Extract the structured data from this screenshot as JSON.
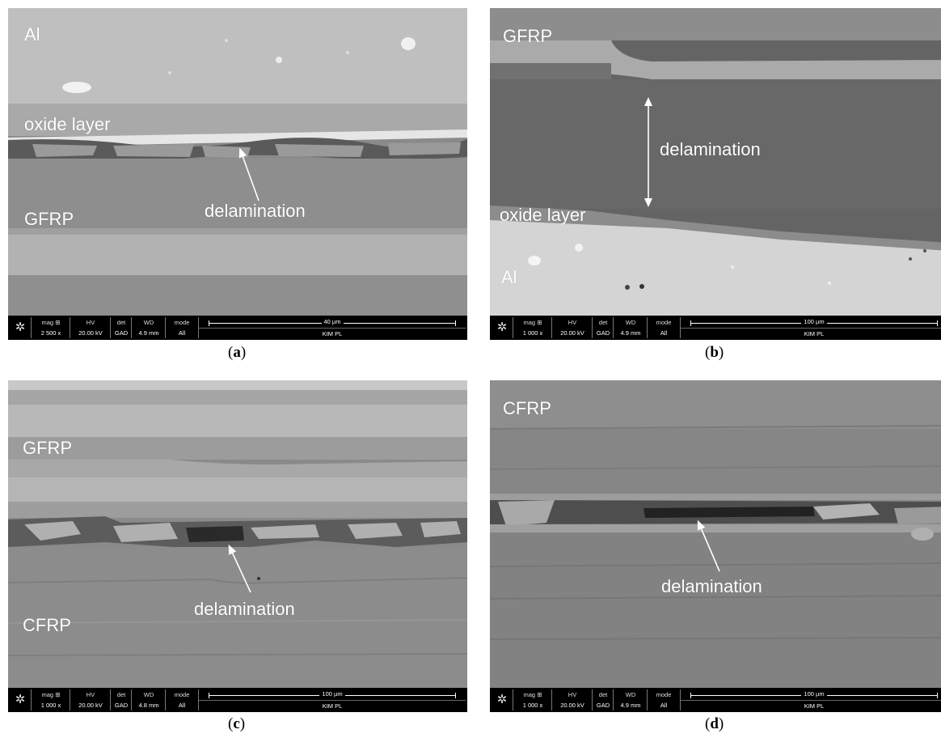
{
  "panels": [
    {
      "caption_open": "(",
      "caption_letter": "a",
      "caption_close": ")",
      "labels": [
        "Al",
        "oxide layer",
        "delamination",
        "GFRP"
      ],
      "databar": {
        "mag_head": "mag ⊞",
        "mag": "2 500 x",
        "hv_head": "HV",
        "hv": "20.00 kV",
        "det_head": "det",
        "det": "GAD",
        "wd_head": "WD",
        "wd": "4.9 mm",
        "mode_head": "mode",
        "mode": "All",
        "scale": "40 µm",
        "org": "KIM PL"
      }
    },
    {
      "caption_open": "(",
      "caption_letter": "b",
      "caption_close": ")",
      "labels": [
        "GFRP",
        "delamination",
        "oxide layer",
        "Al"
      ],
      "databar": {
        "mag_head": "mag ⊞",
        "mag": "1 000 x",
        "hv_head": "HV",
        "hv": "20.00 kV",
        "det_head": "det",
        "det": "GAD",
        "wd_head": "WD",
        "wd": "4.9 mm",
        "mode_head": "mode",
        "mode": "All",
        "scale": "100 µm",
        "org": "KIM PL"
      }
    },
    {
      "caption_open": "(",
      "caption_letter": "c",
      "caption_close": ")",
      "labels": [
        "GFRP",
        "delamination",
        "CFRP"
      ],
      "databar": {
        "mag_head": "mag ⊞",
        "mag": "1 000 x",
        "hv_head": "HV",
        "hv": "20.00 kV",
        "det_head": "det",
        "det": "GAD",
        "wd_head": "WD",
        "wd": "4.8 mm",
        "mode_head": "mode",
        "mode": "All",
        "scale": "100 µm",
        "org": "KIM PL"
      }
    },
    {
      "caption_open": "(",
      "caption_letter": "d",
      "caption_close": ")",
      "labels": [
        "CFRP",
        "delamination"
      ],
      "databar": {
        "mag_head": "mag ⊞",
        "mag": "1 000 x",
        "hv_head": "HV",
        "hv": "20.00 kV",
        "det_head": "det",
        "det": "GAD",
        "wd_head": "WD",
        "wd": "4.9 mm",
        "mode_head": "mode",
        "mode": "All",
        "scale": "100 µm",
        "org": "KIM PL"
      }
    }
  ],
  "icons": {
    "databar_logo": "sem-logo-icon"
  }
}
